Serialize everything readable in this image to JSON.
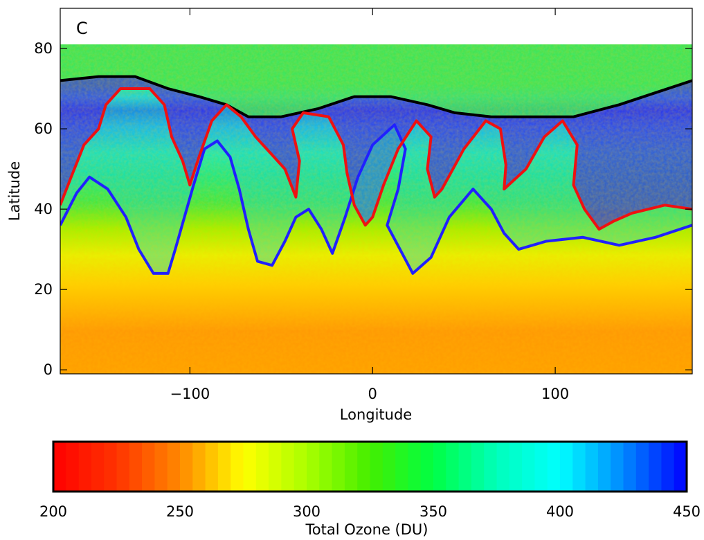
{
  "panel_label": "C",
  "chart_data": [
    {
      "type": "heatmap",
      "title": "",
      "panel_label": "C",
      "xlabel": "Longitude",
      "ylabel": "Latitude",
      "xlim": [
        -171,
        175
      ],
      "ylim": [
        -1,
        90
      ],
      "xticks": [
        -100,
        0,
        100
      ],
      "xtick_labels": [
        "−100",
        "0",
        "100"
      ],
      "yticks": [
        0,
        20,
        40,
        60,
        80
      ],
      "ytick_labels": [
        "0",
        "20",
        "40",
        "60",
        "80"
      ],
      "grid": false,
      "value_field": "Total Ozone (DU)",
      "data_extent_lat_max": 81,
      "contours": [
        {
          "color": "#000000",
          "points": [
            [
              -171,
              72
            ],
            [
              -150,
              73
            ],
            [
              -130,
              73
            ],
            [
              -112,
              70
            ],
            [
              -95,
              68
            ],
            [
              -80,
              66
            ],
            [
              -68,
              63
            ],
            [
              -50,
              63
            ],
            [
              -30,
              65
            ],
            [
              -10,
              68
            ],
            [
              10,
              68
            ],
            [
              30,
              66
            ],
            [
              45,
              64
            ],
            [
              65,
              63
            ],
            [
              85,
              63
            ],
            [
              110,
              63
            ],
            [
              135,
              66
            ],
            [
              155,
              69
            ],
            [
              175,
              72
            ]
          ]
        },
        {
          "color": "#2020ff",
          "points": [
            [
              -171,
              36
            ],
            [
              -162,
              44
            ],
            [
              -155,
              48
            ],
            [
              -145,
              45
            ],
            [
              -135,
              38
            ],
            [
              -128,
              30
            ],
            [
              -120,
              24
            ],
            [
              -112,
              24
            ],
            [
              -108,
              30
            ],
            [
              -103,
              38
            ],
            [
              -98,
              46
            ],
            [
              -92,
              55
            ],
            [
              -85,
              57
            ],
            [
              -78,
              53
            ],
            [
              -73,
              45
            ],
            [
              -68,
              35
            ],
            [
              -63,
              27
            ],
            [
              -55,
              26
            ],
            [
              -48,
              32
            ],
            [
              -42,
              38
            ],
            [
              -35,
              40
            ],
            [
              -28,
              35
            ],
            [
              -22,
              29
            ],
            [
              -15,
              38
            ],
            [
              -8,
              48
            ],
            [
              0,
              56
            ],
            [
              12,
              61
            ],
            [
              18,
              55
            ],
            [
              14,
              45
            ],
            [
              8,
              36
            ],
            [
              15,
              30
            ],
            [
              22,
              24
            ],
            [
              32,
              28
            ],
            [
              42,
              38
            ],
            [
              55,
              45
            ],
            [
              65,
              40
            ],
            [
              72,
              34
            ],
            [
              80,
              30
            ],
            [
              95,
              32
            ],
            [
              115,
              33
            ],
            [
              135,
              31
            ],
            [
              155,
              33
            ],
            [
              175,
              36
            ]
          ]
        },
        {
          "color": "#ee1111",
          "points": [
            [
              -171,
              41
            ],
            [
              -165,
              48
            ],
            [
              -158,
              56
            ],
            [
              -150,
              60
            ],
            [
              -146,
              66
            ],
            [
              -138,
              70
            ],
            [
              -122,
              70
            ],
            [
              -114,
              66
            ],
            [
              -110,
              58
            ],
            [
              -104,
              52
            ],
            [
              -100,
              46
            ],
            [
              -95,
              53
            ],
            [
              -88,
              62
            ],
            [
              -80,
              66
            ],
            [
              -72,
              63
            ],
            [
              -64,
              58
            ],
            [
              -56,
              54
            ],
            [
              -48,
              50
            ],
            [
              -42,
              43
            ],
            [
              -40,
              52
            ],
            [
              -44,
              60
            ],
            [
              -38,
              64
            ],
            [
              -24,
              63
            ],
            [
              -16,
              56
            ],
            [
              -14,
              49
            ],
            [
              -10,
              41
            ],
            [
              -4,
              36
            ],
            [
              0,
              38
            ],
            [
              6,
              46
            ],
            [
              14,
              55
            ],
            [
              24,
              62
            ],
            [
              32,
              58
            ],
            [
              30,
              50
            ],
            [
              34,
              43
            ],
            [
              38,
              45
            ],
            [
              50,
              55
            ],
            [
              62,
              62
            ],
            [
              70,
              60
            ],
            [
              73,
              51
            ],
            [
              72,
              45
            ],
            [
              84,
              50
            ],
            [
              94,
              58
            ],
            [
              104,
              62
            ],
            [
              112,
              56
            ],
            [
              110,
              46
            ],
            [
              116,
              40
            ],
            [
              124,
              35
            ],
            [
              132,
              37
            ],
            [
              142,
              39
            ],
            [
              160,
              41
            ],
            [
              175,
              40
            ]
          ]
        }
      ]
    },
    {
      "type": "heatmap",
      "title": "",
      "xlabel": "Total Ozone (DU)",
      "ylabel": "",
      "xlim": [
        200,
        450
      ],
      "xticks": [
        200,
        250,
        300,
        350,
        400,
        450
      ],
      "xtick_labels": [
        "200",
        "250",
        "300",
        "350",
        "400",
        "450"
      ],
      "colormap": [
        {
          "value": 200,
          "color": "#ff0000"
        },
        {
          "value": 225,
          "color": "#ff3300"
        },
        {
          "value": 250,
          "color": "#ff8800"
        },
        {
          "value": 275,
          "color": "#ffff00"
        },
        {
          "value": 300,
          "color": "#aaff00"
        },
        {
          "value": 325,
          "color": "#44ee00"
        },
        {
          "value": 350,
          "color": "#00ff44"
        },
        {
          "value": 375,
          "color": "#00ffbb"
        },
        {
          "value": 400,
          "color": "#00ffff"
        },
        {
          "value": 425,
          "color": "#0088ff"
        },
        {
          "value": 450,
          "color": "#0000ff"
        }
      ]
    }
  ]
}
